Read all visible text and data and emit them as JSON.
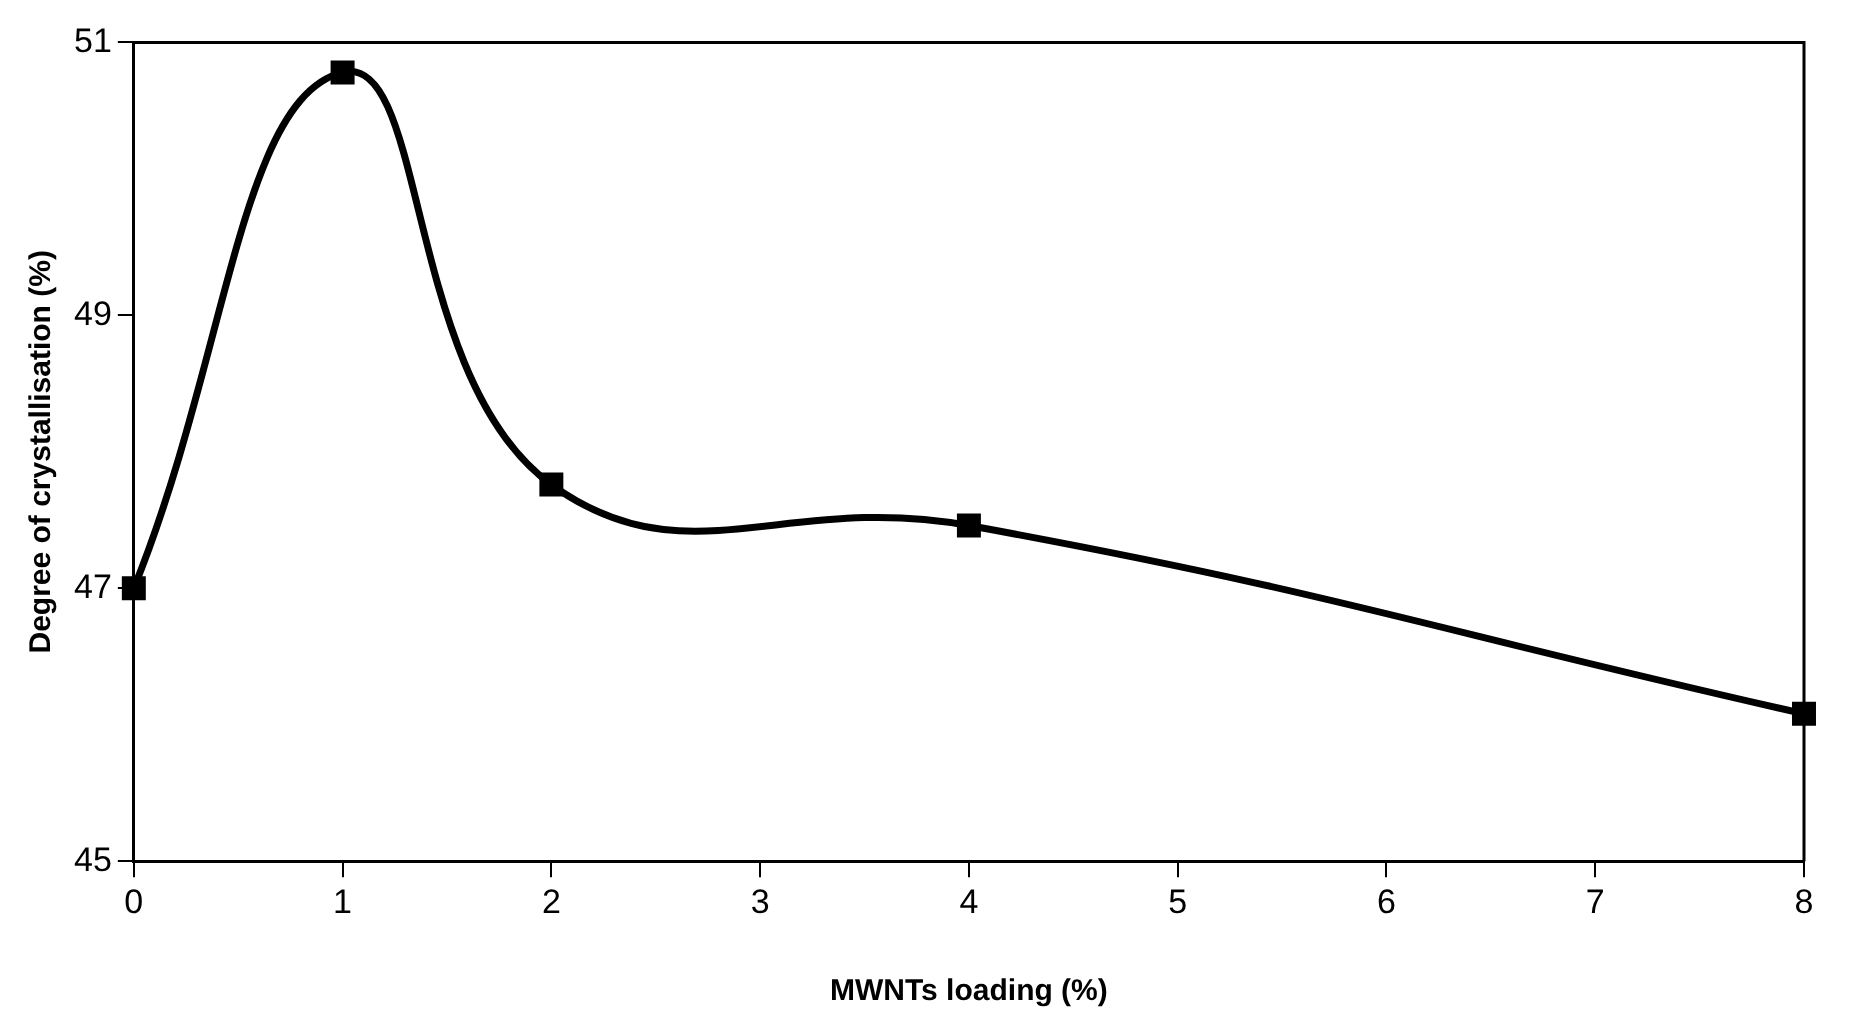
{
  "chart_data": {
    "type": "line",
    "xlabel": "MWNTs loading (%)",
    "ylabel": "Degree of crystallisation (%)",
    "x": [
      0,
      1,
      2,
      4,
      8
    ],
    "series": [
      {
        "color": "#000000",
        "values": [
          47.0,
          50.78,
          47.76,
          47.46,
          46.08
        ]
      }
    ],
    "xlim": [
      0,
      8
    ],
    "xticks": [
      0,
      1,
      2,
      3,
      4,
      5,
      6,
      7,
      8
    ],
    "ylim": [
      45,
      51
    ],
    "yticks": [
      45,
      47,
      49,
      51
    ],
    "grid": false,
    "legend": false,
    "marker": "square",
    "line_style": "solid"
  }
}
